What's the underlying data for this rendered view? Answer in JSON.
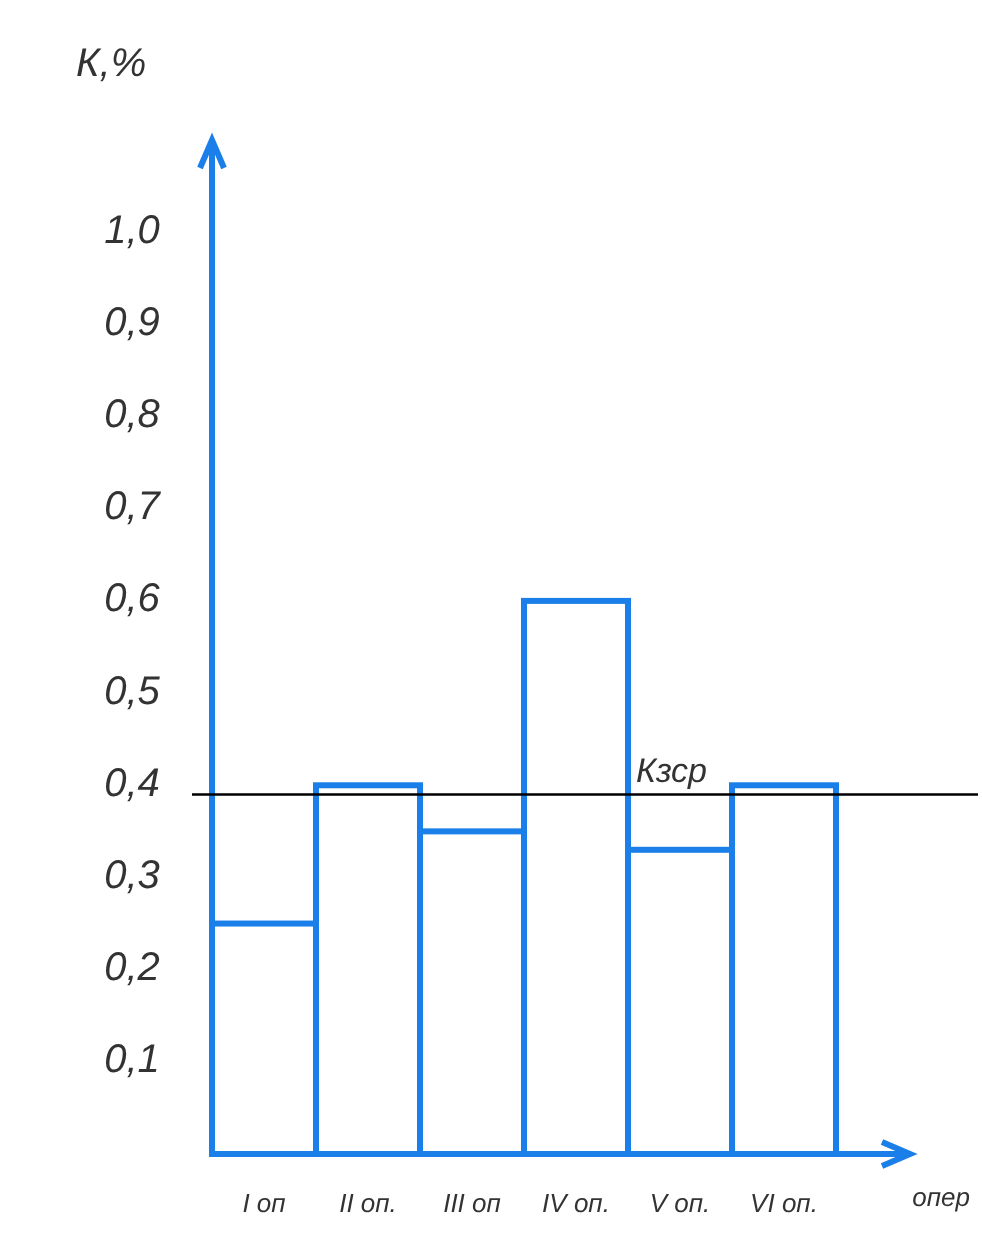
{
  "chart_data": {
    "type": "bar",
    "ylabel": "К,%",
    "xlabel": "опер",
    "categories": [
      "I оп",
      "II оп.",
      "III оп",
      "IV оп.",
      "V оп.",
      "VI оп."
    ],
    "values": [
      0.25,
      0.4,
      0.35,
      0.6,
      0.33,
      0.4
    ],
    "color": "#1a7fe8",
    "ylim": [
      0,
      1.1
    ],
    "yticks": [
      {
        "value": 0.1,
        "label": "0,1"
      },
      {
        "value": 0.2,
        "label": "0,2"
      },
      {
        "value": 0.3,
        "label": "0,3"
      },
      {
        "value": 0.4,
        "label": "0,4"
      },
      {
        "value": 0.5,
        "label": "0,5"
      },
      {
        "value": 0.6,
        "label": "0,6"
      },
      {
        "value": 0.7,
        "label": "0,7"
      },
      {
        "value": 0.8,
        "label": "0,8"
      },
      {
        "value": 0.9,
        "label": "0,9"
      },
      {
        "value": 1.0,
        "label": "1,0"
      }
    ],
    "ref_lines": [
      {
        "axis": "y",
        "value": 0.39,
        "label": "Кзср",
        "color": "#000000"
      }
    ],
    "grid": false
  }
}
